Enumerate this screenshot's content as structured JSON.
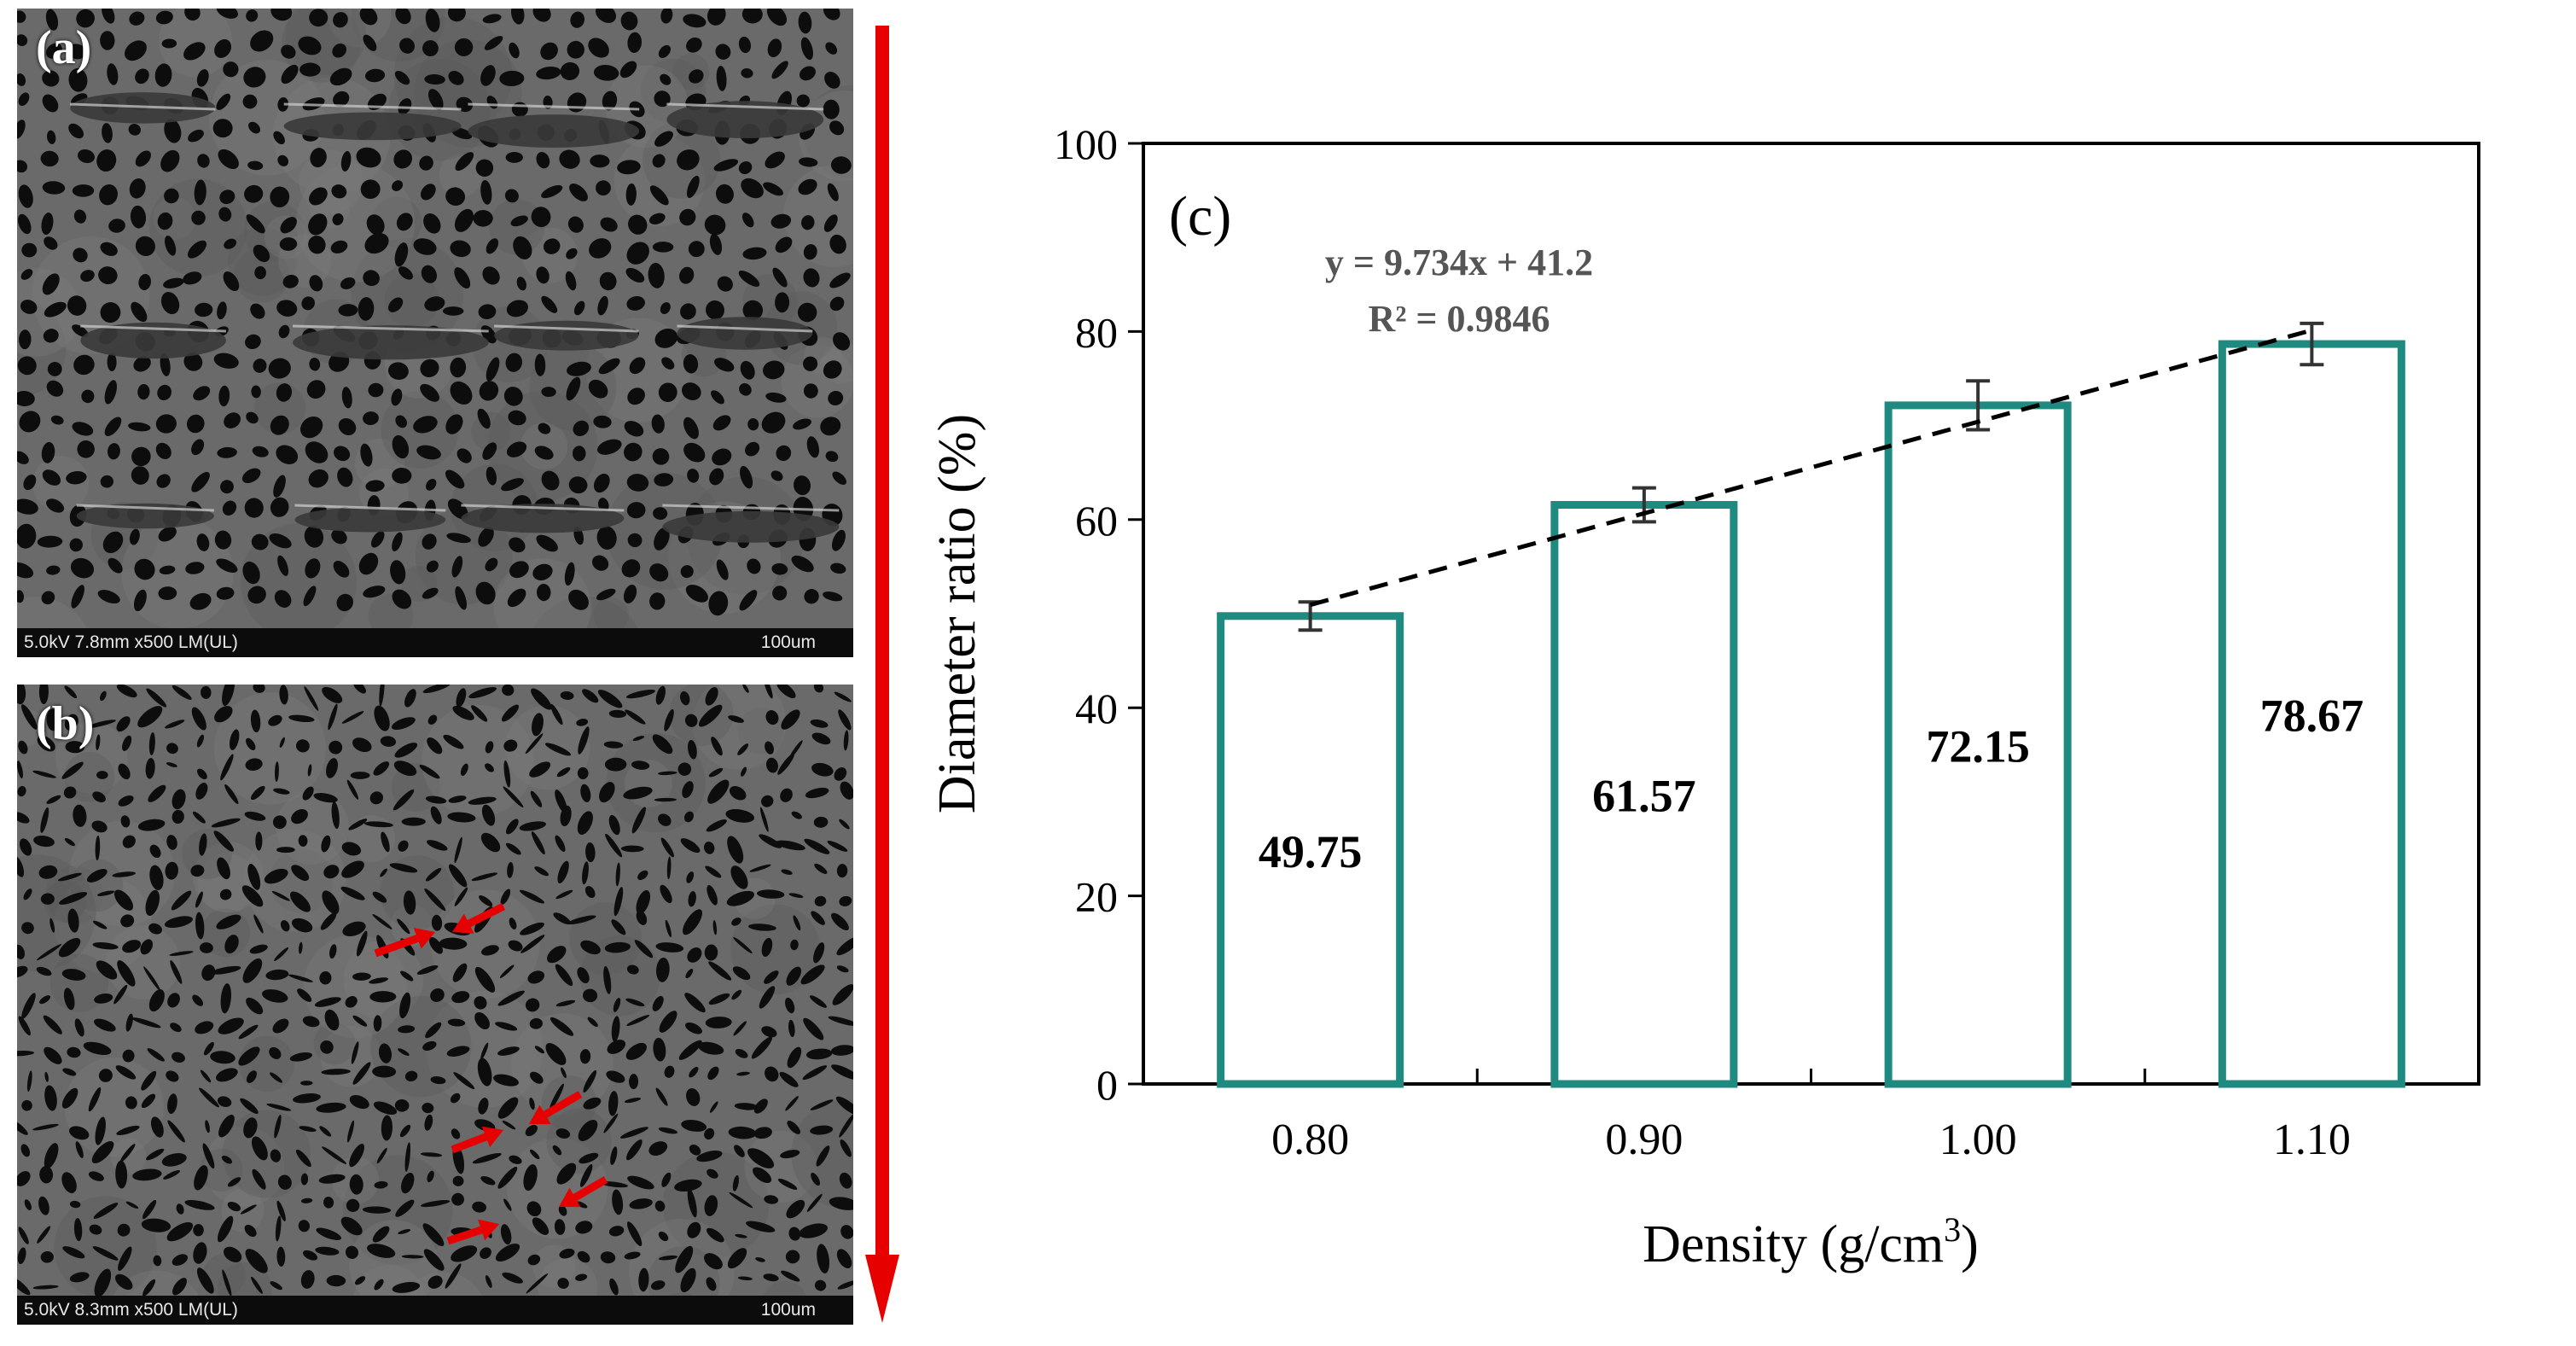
{
  "micrographs": {
    "a": {
      "letter": "(a)",
      "meta": "5.0kV 7.8mm x500 LM(UL)",
      "scale": "100um"
    },
    "b": {
      "letter": "(b)",
      "meta": "5.0kV 8.3mm x500 LM(UL)",
      "scale": "100um"
    }
  },
  "colors": {
    "bar_edge": "#1f8a80",
    "arrow": "#e60000",
    "trend": "#000000",
    "axis": "#000000"
  },
  "chart_data": {
    "type": "bar",
    "panel_label": "(c)",
    "categories": [
      "0.80",
      "0.90",
      "1.00",
      "1.10"
    ],
    "values": [
      49.75,
      61.57,
      72.15,
      78.67
    ],
    "value_labels": [
      "49.75",
      "61.57",
      "72.15",
      "78.67"
    ],
    "error": [
      1.5,
      1.8,
      2.6,
      2.2
    ],
    "ylim": [
      0,
      100
    ],
    "yticks": [
      0,
      20,
      40,
      60,
      80,
      100
    ],
    "ylabel": "Diameter  ratio  (%)",
    "xlabel": {
      "main": "Density  (g/cm",
      "sup": "3",
      "close": ")"
    },
    "trendline": {
      "equation": "y = 9.734x + 41.2",
      "r2": "R² = 0.9846",
      "slope": 9.734,
      "intercept": 41.2
    }
  }
}
